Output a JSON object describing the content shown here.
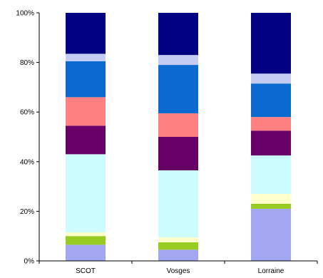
{
  "chart_data": {
    "type": "bar",
    "stacked": true,
    "title": "",
    "xlabel": "",
    "ylabel": "",
    "ylim": [
      0,
      100
    ],
    "y_ticks": [
      0,
      20,
      40,
      60,
      80,
      100
    ],
    "y_tick_labels": [
      "0%",
      "20%",
      "40%",
      "60%",
      "80%",
      "100%"
    ],
    "grid": false,
    "legend": "none",
    "categories": [
      "SCOT",
      "Vosges",
      "Lorraine"
    ],
    "series": [
      {
        "color": "#a3a6f0",
        "values": [
          6.5,
          4.5,
          21
        ]
      },
      {
        "color": "#99cc22",
        "values": [
          3.5,
          3,
          2
        ]
      },
      {
        "color": "#ffffcc",
        "values": [
          1.5,
          2,
          4
        ]
      },
      {
        "color": "#ccfcfd",
        "values": [
          31.5,
          27,
          15.5
        ]
      },
      {
        "color": "#660066",
        "values": [
          11.5,
          13.5,
          10
        ]
      },
      {
        "color": "#ff8080",
        "values": [
          11.5,
          9.5,
          5.5
        ]
      },
      {
        "color": "#0a6ad0",
        "values": [
          14.5,
          19.5,
          13.5
        ]
      },
      {
        "color": "#c5ccf4",
        "values": [
          3,
          4,
          4
        ]
      },
      {
        "color": "#000080",
        "values": [
          16.5,
          17,
          24.5
        ]
      }
    ]
  }
}
